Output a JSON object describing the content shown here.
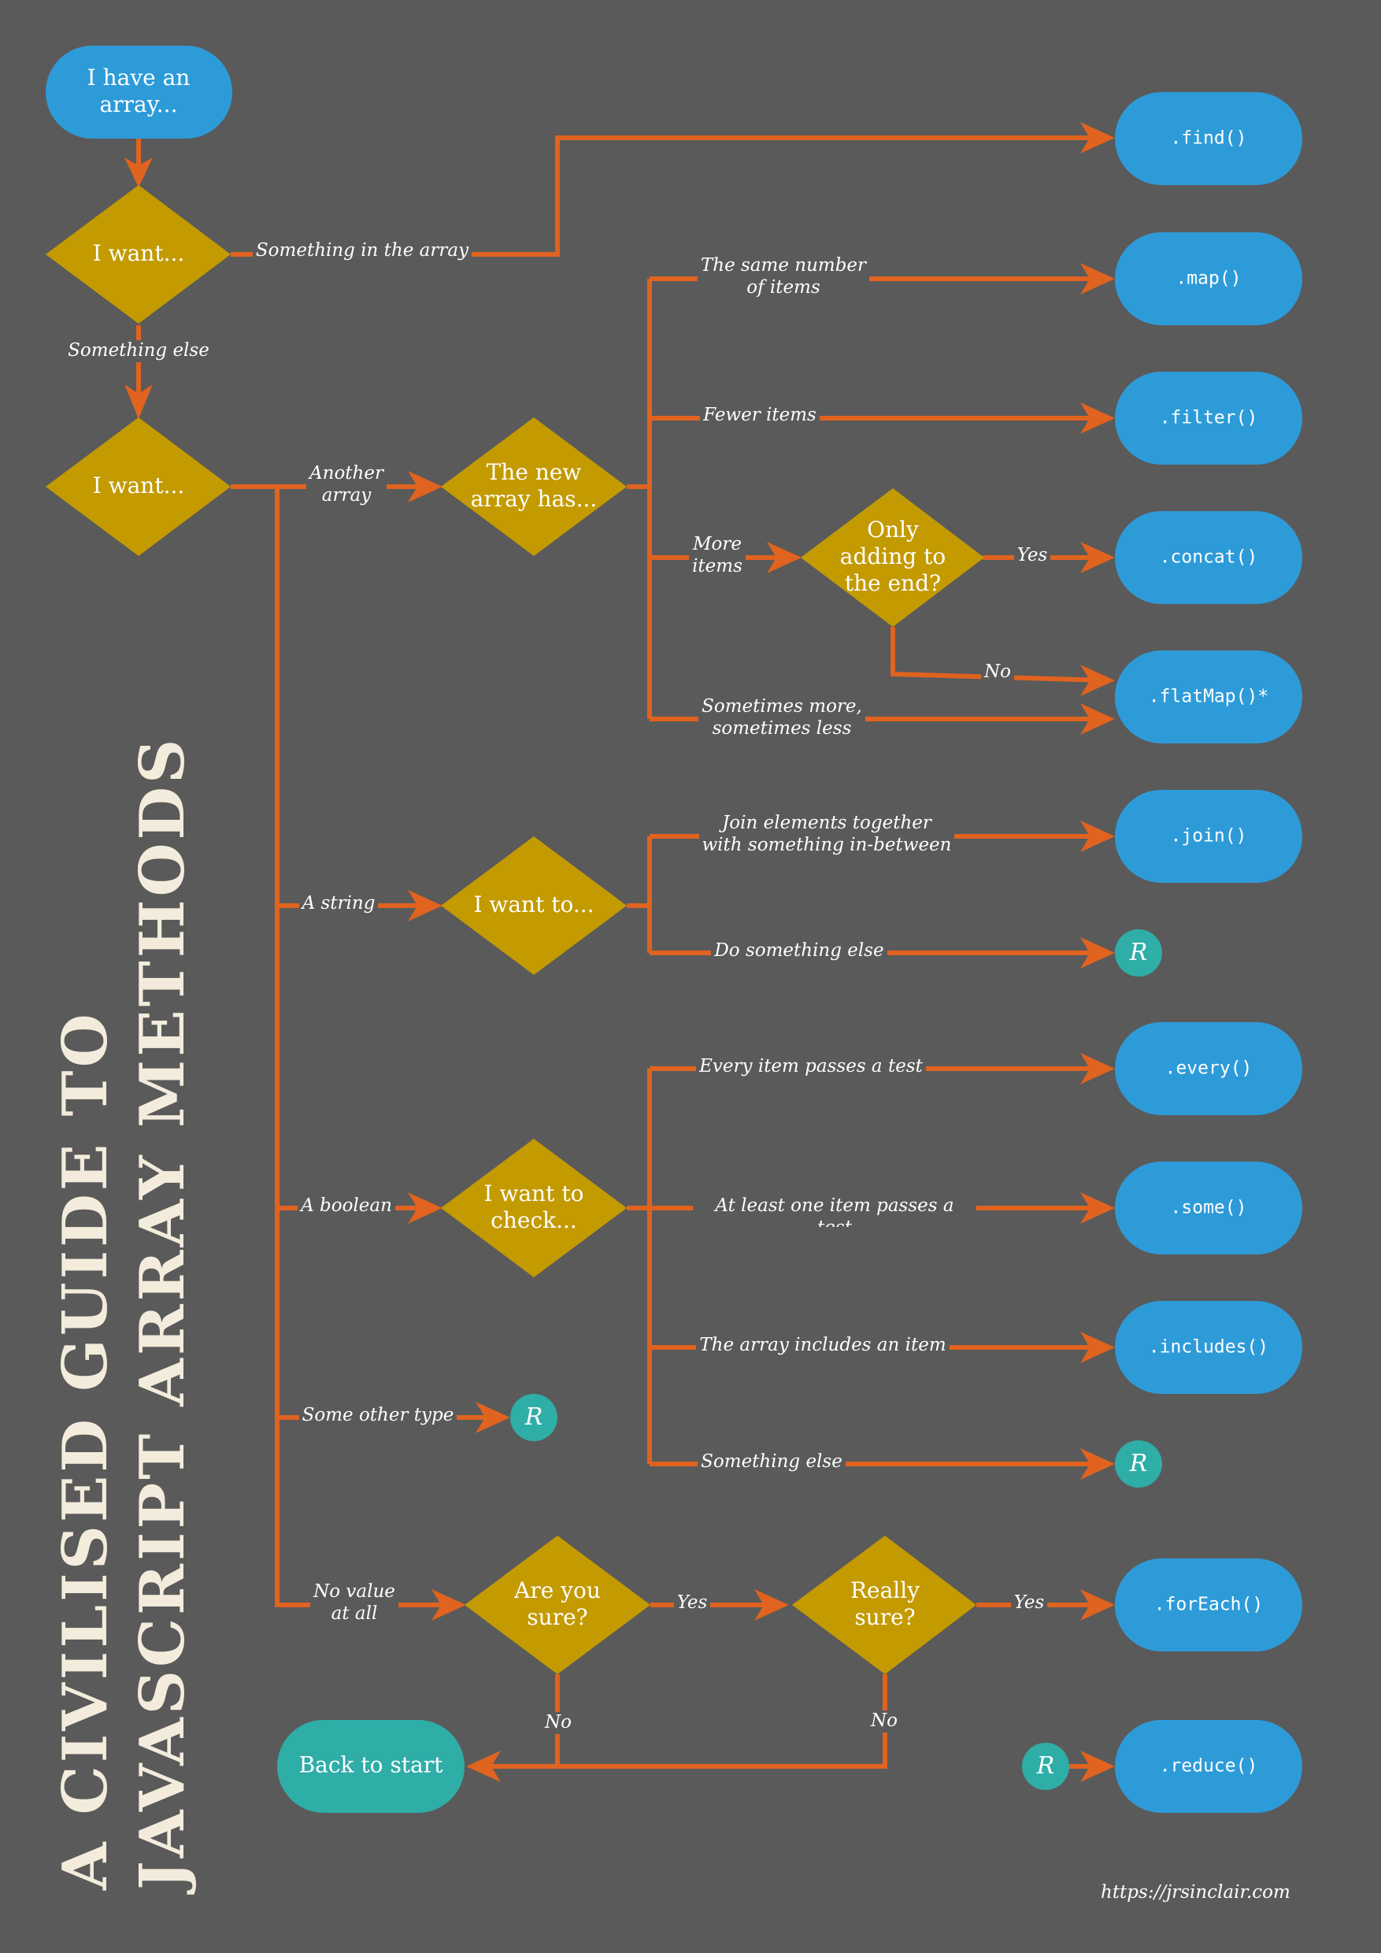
{
  "title": {
    "line1": "A CIVILISED GUIDE TO",
    "line2": "JAVASCRIPT ARRAY METHODS"
  },
  "footer_url": "https://jrsinclair.com",
  "colors": {
    "background": "#5a5a5a",
    "edge": "#e0631f",
    "decision": "#c39a00",
    "method": "#2e9bd9",
    "restart": "#2fada7"
  },
  "nodes": {
    "start": "I have an\narray...",
    "q_want_1": "I want...",
    "q_want_2": "I want...",
    "q_new_array": "The new\narray has...",
    "q_only_adding": "Only\nadding to\nthe end?",
    "q_string": "I want to...",
    "q_check": "I want to\ncheck...",
    "q_are_you_sure": "Are you\nsure?",
    "q_really_sure": "Really\nsure?",
    "back_to_start": "Back to start",
    "restart": "R"
  },
  "methods": {
    "find": ".find()",
    "map": ".map()",
    "filter": ".filter()",
    "concat": ".concat()",
    "flatMap": ".flatMap()*",
    "join": ".join()",
    "every": ".every()",
    "some": ".some()",
    "includes": ".includes()",
    "forEach": ".forEach()",
    "reduce": ".reduce()"
  },
  "labels": {
    "something_in_array": "Something in the array",
    "something_else": "Something else",
    "another_array": "Another\narray",
    "same_number": "The same number\nof items",
    "fewer_items": "Fewer items",
    "more_items": "More\nitems",
    "yes_concat": "Yes",
    "no_flatmap": "No",
    "sometimes": "Sometimes more,\nsometimes less",
    "a_string": "A string",
    "join_elements": "Join elements together\nwith something in-between",
    "do_something_else": "Do something else",
    "a_boolean": "A boolean",
    "every_item": "Every item passes a test",
    "at_least_one": "At least one item passes a test",
    "array_includes": "The array includes an item",
    "something_else_check": "Something else",
    "some_other_type": "Some other type",
    "no_value": "No value\nat all",
    "yes_sure": "Yes",
    "yes_really": "Yes",
    "no_sure": "No",
    "no_really": "No"
  }
}
